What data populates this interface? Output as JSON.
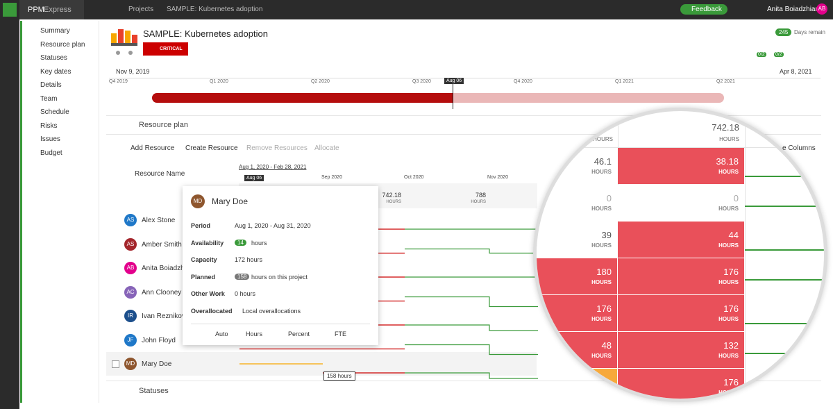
{
  "topbar": {
    "app": "PPM",
    "app_suffix": "Express",
    "breadcrumb": [
      "Projects",
      "SAMPLE: Kubernetes adoption"
    ],
    "feedback": "Feedback",
    "user": "Anita Boiadzhian",
    "user_initials": "AB"
  },
  "nav": [
    "Summary",
    "Resource plan",
    "Statuses",
    "Key dates",
    "Details",
    "Team",
    "Schedule",
    "Risks",
    "Issues",
    "Budget"
  ],
  "project": {
    "title": "SAMPLE: Kubernetes adoption",
    "status": "CRITICAL",
    "days_remaining": 245,
    "days_label": "Days remain",
    "badges": [
      "0/2",
      "0/2"
    ]
  },
  "timeline": {
    "start": "Nov 9, 2019",
    "end": "Apr 8, 2021",
    "quarters": [
      "Q4 2019",
      "Q1 2020",
      "Q2 2020",
      "Q3 2020",
      "Q4 2020",
      "Q1 2021",
      "Q2 2021"
    ],
    "today": "Aug 06"
  },
  "resource_plan": {
    "title": "Resource plan",
    "total": 742.18,
    "unit": "HOURS",
    "toolbar": [
      "Add Resource",
      "Create Resource",
      "Remove Resources",
      "Allocate"
    ],
    "columns_button": "e Columns",
    "name_header": "Resource Name",
    "range": "Aug 1, 2020 - Feb 28, 2021",
    "months": [
      "Aug 06",
      "Sep 2020",
      "Oct 2020",
      "Nov 2020"
    ],
    "column_totals": [
      742.18,
      788
    ],
    "resources": [
      {
        "initials": "AS",
        "name": "Alex Stone",
        "color": "#1f78c8"
      },
      {
        "initials": "AS",
        "name": "Amber Smith",
        "color": "#a4262c"
      },
      {
        "initials": "AB",
        "name": "Anita Boiadzhian",
        "color": "#e3008c"
      },
      {
        "initials": "AC",
        "name": "Ann Clooney",
        "color": "#8764b8"
      },
      {
        "initials": "IR",
        "name": "Ivan Reznikov",
        "color": "#1c4f8c"
      },
      {
        "initials": "JF",
        "name": "John Floyd",
        "color": "#1f78c8"
      },
      {
        "initials": "MD",
        "name": "Mary Doe",
        "color": "#8e562e"
      }
    ]
  },
  "popup": {
    "initials": "MD",
    "name": "Mary Doe",
    "rows": [
      {
        "label": "Period",
        "value": "Aug 1, 2020 - Aug 31, 2020"
      },
      {
        "label": "Availability",
        "badge": 14,
        "value": "hours"
      },
      {
        "label": "Capacity",
        "value": "172 hours"
      },
      {
        "label": "Planned",
        "badge": 158,
        "value": "hours on this project"
      },
      {
        "label": "Other Work",
        "value": "0 hours"
      },
      {
        "label": "Overallocated",
        "value": "Local overallocations"
      }
    ],
    "footer": [
      "Auto",
      "Hours",
      "Percent",
      "FTE"
    ]
  },
  "tooltip": "158 hours",
  "magnifier": {
    "header": 742.18,
    "rows": [
      [
        46.1,
        38.18
      ],
      [
        0,
        0
      ],
      [
        39,
        44
      ],
      [
        180,
        176
      ],
      [
        176,
        176
      ],
      [
        48,
        132
      ],
      [
        null,
        176
      ]
    ]
  },
  "statuses": {
    "title": "Statuses"
  }
}
